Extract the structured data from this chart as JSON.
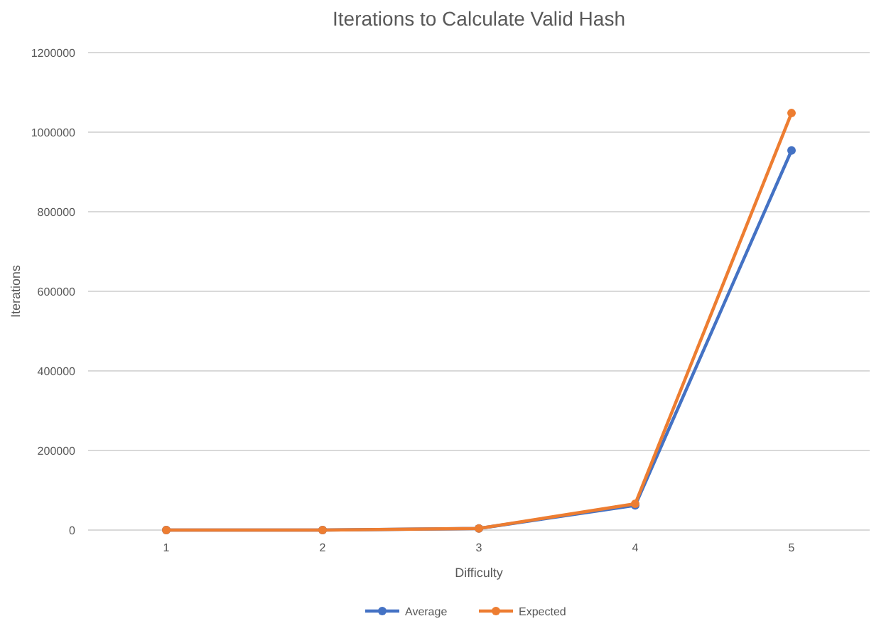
{
  "chart_data": {
    "type": "line",
    "title": "Iterations to Calculate Valid Hash",
    "xlabel": "Difficulty",
    "ylabel": "Iterations",
    "categories": [
      "1",
      "2",
      "3",
      "4",
      "5"
    ],
    "series": [
      {
        "name": "Average",
        "color": "#4472c4",
        "values": [
          0,
          0,
          4000,
          62000,
          954000
        ]
      },
      {
        "name": "Expected",
        "color": "#ed7d31",
        "values": [
          0,
          0,
          4000,
          66000,
          1048000
        ]
      }
    ],
    "ylim": [
      0,
      1200000
    ],
    "yticks": [
      0,
      200000,
      400000,
      600000,
      800000,
      1000000,
      1200000
    ],
    "grid": "y",
    "legend": "bottom",
    "marker": "circle",
    "line_style": "solid"
  }
}
